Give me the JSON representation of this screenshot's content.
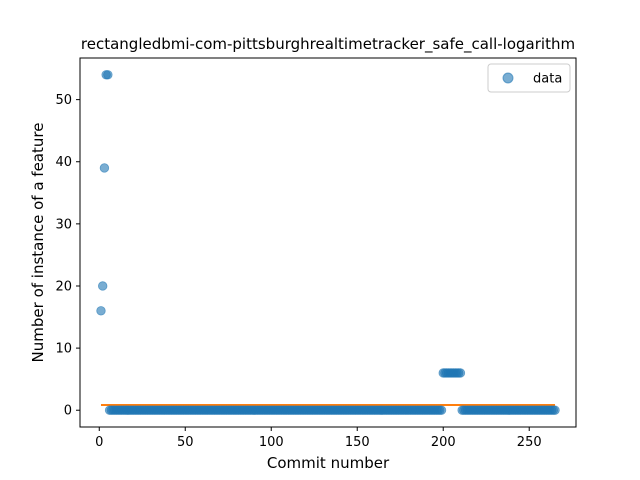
{
  "chart_data": {
    "type": "scatter",
    "title": "rectangledbmi-com-pittsburghrealtimetracker_safe_call-logarithm",
    "xlabel": "Commit number",
    "ylabel": "Number of instance of a feature",
    "xlim": [
      -11.2,
      277.2
    ],
    "ylim": [
      -2.7,
      56.7
    ],
    "xticks": [
      0,
      50,
      100,
      150,
      200,
      250
    ],
    "yticks": [
      0,
      10,
      20,
      30,
      40,
      50
    ],
    "grid": false,
    "legend": {
      "placement": "top-right",
      "entries": [
        "data"
      ]
    },
    "colors": {
      "data": "#1f77b4",
      "fit": "#ff7f0e"
    },
    "series": [
      {
        "name": "data",
        "kind": "scatter",
        "points": [
          [
            1,
            16
          ],
          [
            2,
            20
          ],
          [
            3,
            39
          ],
          [
            4,
            54
          ],
          [
            5,
            54
          ],
          {
            "range": [
              6,
              199
            ],
            "y": 0
          },
          {
            "range": [
              200,
              210
            ],
            "y": 6
          },
          {
            "range": [
              211,
              265
            ],
            "y": 0
          }
        ]
      },
      {
        "name": "",
        "kind": "line",
        "points": [
          [
            1,
            0.85
          ],
          [
            265,
            0.85
          ]
        ]
      }
    ]
  }
}
